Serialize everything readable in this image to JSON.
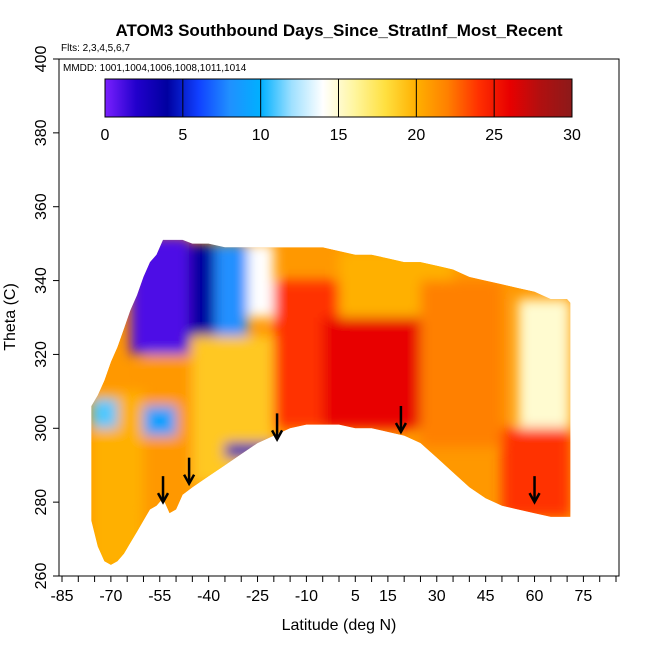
{
  "chart_data": {
    "type": "heatmap",
    "title": "ATOM3 Southbound Days_Since_StratInf_Most_Recent",
    "flights_note": "Flts: 2,3,4,5,6,7",
    "mmdd_note": "MMDD: 1001,1004,1006,1008,1011,1014",
    "xlabel": "Latitude (deg N)",
    "ylabel": "Theta (C)",
    "xlim": [
      -85,
      85
    ],
    "ylim": [
      260,
      400
    ],
    "x_ticks": [
      -85,
      -70,
      -55,
      -40,
      -25,
      -10,
      5,
      15,
      30,
      45,
      60,
      75
    ],
    "x_tick_labels": [
      "-85",
      "-70",
      "-55",
      "-40",
      "-25",
      "-10",
      "5",
      "15",
      "30",
      "45",
      "60",
      "75"
    ],
    "y_ticks": [
      260,
      280,
      300,
      320,
      340,
      360,
      380,
      400
    ],
    "y_tick_labels": [
      "260",
      "280",
      "300",
      "320",
      "340",
      "360",
      "380",
      "400"
    ],
    "colorbar": {
      "range": [
        0,
        30
      ],
      "ticks": [
        0,
        5,
        10,
        15,
        20,
        25,
        30
      ],
      "tick_labels": [
        "0",
        "5",
        "10",
        "15",
        "20",
        "25",
        "30"
      ],
      "colors": [
        "#7a20ff",
        "#2200cc",
        "#0000a0",
        "#1040ff",
        "#2090ff",
        "#00b0ff",
        "#9fe0ff",
        "#ffffff",
        "#fff6a0",
        "#ffe040",
        "#ffb000",
        "#ff8000",
        "#ff3000",
        "#e80000",
        "#b01010",
        "#8c1a1a"
      ]
    },
    "arrows": [
      {
        "lat": -54,
        "theta": 280
      },
      {
        "lat": -46,
        "theta": 285
      },
      {
        "lat": -19,
        "theta": 297
      },
      {
        "lat": 19,
        "theta": 299
      },
      {
        "lat": 60,
        "theta": 280
      }
    ],
    "boundary": {
      "latitudes": [
        -76,
        -74,
        -72,
        -70,
        -68,
        -66,
        -64,
        -62,
        -60,
        -58,
        -56,
        -54,
        -52,
        -50,
        -48,
        -45,
        -40,
        -35,
        -30,
        -25,
        -20,
        -15,
        -10,
        -5,
        0,
        5,
        10,
        15,
        20,
        25,
        30,
        35,
        40,
        45,
        50,
        55,
        60,
        65,
        70,
        71
      ],
      "theta_top": [
        306,
        309,
        313,
        318,
        322,
        327,
        332,
        336,
        341,
        345,
        347,
        351,
        351,
        351,
        351,
        350,
        350,
        349,
        349,
        349,
        349,
        349,
        349,
        349,
        348,
        347,
        347,
        346,
        345,
        345,
        344,
        343,
        341,
        340,
        339,
        338,
        337,
        335,
        335,
        334
      ],
      "theta_bottom": [
        275,
        268,
        264,
        263,
        264,
        266,
        269,
        272,
        275,
        278,
        279,
        281,
        277,
        278,
        282,
        284,
        287,
        290,
        293,
        296,
        298,
        300,
        301,
        301,
        301,
        300,
        300,
        299,
        298,
        296,
        292,
        288,
        284,
        281,
        279,
        278,
        277,
        276,
        276,
        276
      ]
    },
    "regions": [
      {
        "lat_range": [
          -64,
          -46
        ],
        "theta_range": [
          320,
          352
        ],
        "value": 1
      },
      {
        "lat_range": [
          -46,
          -38
        ],
        "theta_range": [
          325,
          350
        ],
        "value": 4
      },
      {
        "lat_range": [
          -38,
          -28
        ],
        "theta_range": [
          320,
          350
        ],
        "value": 8
      },
      {
        "lat_range": [
          -28,
          -20
        ],
        "theta_range": [
          330,
          350
        ],
        "value": 14
      },
      {
        "lat_range": [
          -76,
          -60
        ],
        "theta_range": [
          262,
          310
        ],
        "value": 20
      },
      {
        "lat_range": [
          -60,
          -45
        ],
        "theta_range": [
          278,
          320
        ],
        "value": 21
      },
      {
        "lat_range": [
          -45,
          -20
        ],
        "theta_range": [
          285,
          325
        ],
        "value": 19
      },
      {
        "lat_range": [
          -20,
          0
        ],
        "theta_range": [
          300,
          340
        ],
        "value": 24
      },
      {
        "lat_range": [
          -5,
          25
        ],
        "theta_range": [
          300,
          330
        ],
        "value": 26
      },
      {
        "lat_range": [
          0,
          35
        ],
        "theta_range": [
          330,
          348
        ],
        "value": 20
      },
      {
        "lat_range": [
          25,
          50
        ],
        "theta_range": [
          295,
          340
        ],
        "value": 22
      },
      {
        "lat_range": [
          50,
          71
        ],
        "theta_range": [
          276,
          300
        ],
        "value": 24
      },
      {
        "lat_range": [
          55,
          71
        ],
        "theta_range": [
          300,
          335
        ],
        "value": 15
      },
      {
        "lat_range": [
          -35,
          -20
        ],
        "theta_range": [
          292,
          296
        ],
        "value": 3
      },
      {
        "lat_range": [
          -60,
          -50
        ],
        "theta_range": [
          298,
          306
        ],
        "value": 9
      },
      {
        "lat_range": [
          -76,
          -68
        ],
        "theta_range": [
          300,
          308
        ],
        "value": 11
      }
    ]
  }
}
